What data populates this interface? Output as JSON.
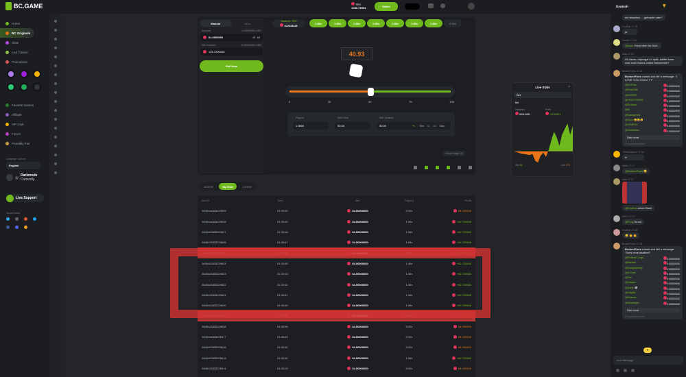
{
  "brand": {
    "name": "BC.GAME",
    "accent": "#7bc11d",
    "loss": "#e8751a"
  },
  "header": {
    "currency": "TRX",
    "balance": "1088.73553",
    "wallet": "Wallet",
    "chat_lang": "Deutsch"
  },
  "sidebar": {
    "items": [
      {
        "label": "Home",
        "color": "#6fb91c"
      },
      {
        "label": "BC Originals",
        "color": "#e8751a"
      },
      {
        "label": "Slots",
        "color": "#b04ce0"
      },
      {
        "label": "Live Casino",
        "color": "#8bc34a"
      },
      {
        "label": "Promotions",
        "color": "#e05a5a"
      }
    ],
    "games": [
      "#b07cf0",
      "#a020e0",
      "#f4b400",
      "#2ecc71",
      "#1fae5a",
      "#33363b"
    ],
    "items2": [
      {
        "label": "Favorite Games",
        "color": "#2e7d32"
      },
      {
        "label": "Affiliate",
        "color": "#8a5cc0"
      },
      {
        "label": "VIP Club",
        "color": "#f4b400"
      },
      {
        "label": "Forum",
        "color": "#c040c0"
      },
      {
        "label": "Provably Fair",
        "color": "#c8a040"
      }
    ],
    "language_label": "Language Options",
    "language": "English",
    "darkmode": "Darkmode",
    "darkmode_sub": "Currently",
    "live_support": "Live Support",
    "social_label": "Social Media"
  },
  "control": {
    "tabs": [
      "Manual",
      "Auto"
    ],
    "amount_label": "Amount",
    "amount_usd": "4.24002000 USD",
    "amount": "64.0000000",
    "half": "/2",
    "double": "x2",
    "win_label": "Win Amount",
    "win_usd": "8.00696960 USD",
    "win": "126.7200000",
    "roll": "Roll Now"
  },
  "game": {
    "bankroll_label": "Bankroll: TRX",
    "bankroll": "422015428",
    "history": [
      "1.98x",
      "1.98x",
      "1.98x",
      "1.98x",
      "1.98x",
      "1.98x",
      "1.98x",
      "0.00x"
    ],
    "result": "40.93",
    "slider_value": 50,
    "ticks": [
      "0",
      "25",
      "50",
      "75",
      "100"
    ],
    "payout_label": "Payout",
    "payout": "1.9800",
    "rollover_label": "Roll Over",
    "rollover": "50.00",
    "winchance_label": "Win Chance",
    "winchance": "50.00",
    "pct": "%",
    "quick": [
      "Min",
      "/2",
      "x2",
      "Max"
    ],
    "house_edge": "House Edge 1%"
  },
  "live_stats": {
    "title": "Live Stats",
    "select": "Bet",
    "sub": "Bet",
    "wagered_label": "Wagered",
    "wagered": "6604.3803",
    "profit_label": "Profit",
    "profit": "+42.16921",
    "win_label": "Win",
    "win": "64",
    "lose_label": "Lose",
    "lose": "170",
    "profit_series": [
      0,
      -0.3,
      -0.6,
      -0.9,
      -1,
      -1.2,
      -1.3,
      -1,
      -3.5,
      -4,
      -1.6,
      -0.5,
      -2,
      0.5,
      4,
      7,
      5,
      2,
      6,
      8,
      10,
      6,
      9
    ]
  },
  "bets": {
    "tabs": [
      "All Bets",
      "My Bets",
      "Contest"
    ],
    "columns": [
      "Bet ID",
      "Time",
      "Bet",
      "Payout",
      "Profit"
    ],
    "rows": [
      [
        "2606443835329629",
        "01:35:50",
        "64.00000000",
        "0.00x",
        "64.000000",
        false
      ],
      [
        "2606443835329628",
        "01:35:49",
        "64.00000000",
        "1.98x",
        "+62.720000",
        true
      ],
      [
        "2606443835329627",
        "01:35:48",
        "64.00000000",
        "1.98x",
        "+62.720000",
        true
      ],
      [
        "2606443835329626",
        "01:35:47",
        "64.00000000",
        "1.98x",
        "+62.720000",
        true
      ],
      [
        "2606443835329625",
        "01:35:46",
        "64.00000000",
        "1.98x",
        "+62.720000",
        true
      ],
      [
        "2606443835329624",
        "01:35:45",
        "64.00000000",
        "1.98x",
        "+62.720000",
        true
      ],
      [
        "2606443835329623",
        "01:35:43",
        "64.00000000",
        "1.98x",
        "+62.720000",
        true
      ],
      [
        "2606443835329622",
        "01:35:42",
        "64.00000000",
        "1.98x",
        "+62.720000",
        true
      ],
      [
        "2606443835329621",
        "01:35:41",
        "64.00000000",
        "1.98x",
        "+62.720000",
        true
      ],
      [
        "2606443835329620",
        "01:35:39",
        "64.00000000",
        "1.98x",
        "+62.720000",
        true
      ],
      [
        "2606443835329619",
        "01:35:38",
        "64.00000000",
        "0.00x",
        "64.000000",
        false
      ],
      [
        "2606443835329618",
        "01:35:36",
        "64.00000000",
        "0.00x",
        "64.000000",
        false
      ],
      [
        "2606443835329617",
        "01:35:33",
        "64.00000000",
        "0.00x",
        "64.000000",
        false
      ],
      [
        "2606443835329616",
        "01:35:32",
        "64.00000000",
        "0.00x",
        "64.000000",
        false
      ],
      [
        "2606443835329615",
        "01:35:30",
        "64.00000000",
        "1.98x",
        "+62.720000",
        true
      ],
      [
        "2606443835329614",
        "01:35:29",
        "64.00000000",
        "0.00x",
        "64.000000",
        false
      ]
    ]
  },
  "chat": {
    "messages": [
      {
        "user": "",
        "time": "",
        "text": "ein bisschen ... gebracht oder?"
      },
      {
        "user": "KoolKat",
        "time": "17:10",
        "text": "ja"
      },
      {
        "user": "Dersiel",
        "time": "17:10",
        "mention": "@coco",
        "text": "Freut mich für Dich."
      },
      {
        "user": "Alda",
        "time": "17:10",
        "text": "Ah danm, naja egal zu spät, weiter kann man noch bonus codes bekommen?"
      },
      {
        "user": "BrokenFixes",
        "time": "17:16",
        "rain": "rained and left a message: \"I LOVE YOU COCO TY\"",
        "list": [
          "@ELSPas",
          "@Rose108",
          "@HOOPIE",
          "@TRACTORIDE",
          "@Dt-Ivkas",
          "@lB",
          "@Kawaymeta",
          "@Coco 😀😀😀",
          "@VIGEPIS",
          "@Vindaletan"
        ],
        "amount": "0.00500000",
        "more": "See more",
        "congrats": "Congratulations!"
      },
      {
        "user": "~BellaCapeed",
        "time": "17:16",
        "text": "hi"
      },
      {
        "user": "Mktik",
        "time": "17:17",
        "mention": "@BrokenFixes",
        "text": "😀"
      },
      {
        "user": "Alda",
        "time": "17:17",
        "image": true,
        "mention": "@KooKat",
        "text": "vielen Dank"
      },
      {
        "user": "NeOx",
        "time": "17:17",
        "mention": "@Fony",
        "text": "forum"
      },
      {
        "user": "KoolKat",
        "time": "17:18",
        "text": "😀 👏 👏"
      },
      {
        "user": "BrokenFixes",
        "time": "17:18",
        "rain": "rained and left a message: \"Sorry chat disabled\"",
        "list": [
          "@Endless Corgil...",
          "@Mahadi",
          "@CrazyMonkey",
          "@A 21am",
          "@Fire",
          "@Caspen",
          "@Qonix 🐺",
          "@JollyBix",
          "@Kharma",
          "@Wheelspin"
        ],
        "amount": "0.00500000",
        "more": "See more",
        "congrats": "Congratulations!"
      }
    ],
    "new_count": "9",
    "placeholder": "Your Message"
  }
}
